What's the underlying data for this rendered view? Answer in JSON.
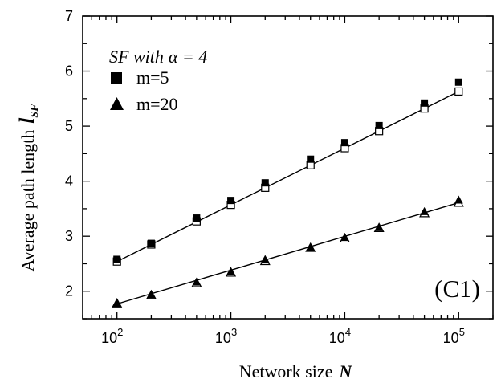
{
  "chart_data": {
    "type": "scatter",
    "xscale": "log",
    "xlim": [
      50,
      200000
    ],
    "ylim": [
      1.5,
      7
    ],
    "xticks": [
      100,
      1000,
      10000,
      100000
    ],
    "xtick_labels": [
      {
        "base": "10",
        "exp": "2"
      },
      {
        "base": "10",
        "exp": "3"
      },
      {
        "base": "10",
        "exp": "4"
      },
      {
        "base": "10",
        "exp": "5"
      }
    ],
    "yticks": [
      2,
      3,
      4,
      5,
      6,
      7
    ],
    "ytick_labels": [
      "2",
      "3",
      "4",
      "5",
      "6",
      "7"
    ],
    "xlabel": {
      "text": "Network size",
      "var": "N"
    },
    "ylabel": {
      "text": "Average path length",
      "var": "l",
      "sub": "SF"
    },
    "legend": {
      "position": "top-left",
      "title_prefix": "SF with",
      "title_symbol": "α = 4",
      "entries": [
        "m=5",
        "m=20"
      ]
    },
    "panel_label": "(C1)",
    "grid": false,
    "series": [
      {
        "name": "m=5",
        "marker": "square",
        "x": [
          100,
          200,
          500,
          1000,
          2000,
          5000,
          10000,
          20000,
          50000,
          100000
        ],
        "y_filled": [
          2.58,
          2.87,
          3.33,
          3.65,
          3.97,
          4.4,
          4.7,
          5.01,
          5.42,
          5.8
        ],
        "y_open": [
          2.54,
          2.85,
          3.27,
          3.57,
          3.88,
          4.29,
          4.6,
          4.91,
          5.32,
          5.63
        ],
        "fit": [
          [
            100,
            2.54
          ],
          [
            100000,
            5.63
          ]
        ]
      },
      {
        "name": "m=20",
        "marker": "triangle",
        "x": [
          100,
          200,
          500,
          1000,
          2000,
          5000,
          10000,
          20000,
          50000,
          100000
        ],
        "y_filled": [
          1.78,
          1.94,
          2.17,
          2.36,
          2.58,
          2.8,
          2.98,
          3.16,
          3.45,
          3.66
        ],
        "y_open": [
          1.78,
          1.93,
          2.15,
          2.34,
          2.55,
          2.79,
          2.96,
          3.15,
          3.42,
          3.61
        ],
        "fit": [
          [
            100,
            1.77
          ],
          [
            100000,
            3.61
          ]
        ]
      }
    ]
  }
}
